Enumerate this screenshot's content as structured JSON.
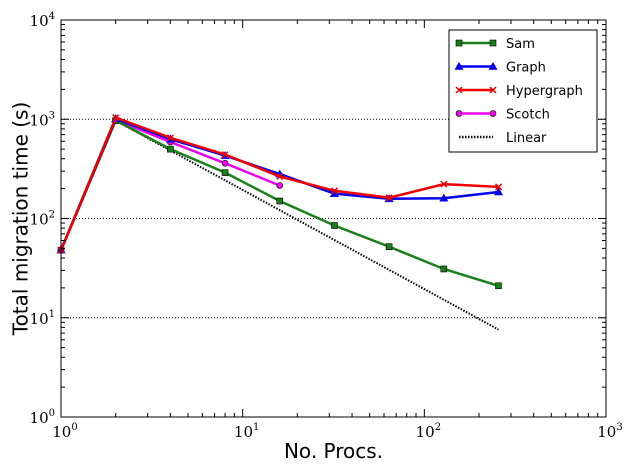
{
  "chart_data": {
    "type": "line",
    "title": "",
    "xlabel": "No. Procs.",
    "ylabel": "Total migration time (s)",
    "xscale": "log",
    "yscale": "log",
    "xlim": [
      1,
      1000
    ],
    "ylim": [
      1,
      10000
    ],
    "x_ticks": [
      {
        "base": "10",
        "exp": "0"
      },
      {
        "base": "10",
        "exp": "1"
      },
      {
        "base": "10",
        "exp": "2"
      },
      {
        "base": "10",
        "exp": "3"
      }
    ],
    "y_ticks": [
      {
        "base": "10",
        "exp": "0"
      },
      {
        "base": "10",
        "exp": "1"
      },
      {
        "base": "10",
        "exp": "2"
      },
      {
        "base": "10",
        "exp": "3"
      },
      {
        "base": "10",
        "exp": "4"
      }
    ],
    "grid": "horizontal dotted at major y ticks",
    "legend_position": "top-right",
    "series": [
      {
        "name": "Sam",
        "color": "#1a7f1a",
        "marker": "square",
        "x": [
          1,
          2,
          4,
          8,
          16,
          32,
          64,
          128,
          256
        ],
        "y": [
          48,
          970,
          500,
          290,
          150,
          85,
          52,
          31,
          21
        ]
      },
      {
        "name": "Graph",
        "color": "#0000ee",
        "marker": "triangle",
        "x": [
          1,
          2,
          4,
          8,
          16,
          32,
          64,
          128,
          256
        ],
        "y": [
          48,
          1010,
          630,
          430,
          280,
          178,
          158,
          160,
          185
        ]
      },
      {
        "name": "Hypergraph",
        "color": "#ee0000",
        "marker": "x",
        "x": [
          1,
          2,
          4,
          8,
          16,
          32,
          64,
          128,
          256
        ],
        "y": [
          48,
          1040,
          650,
          440,
          265,
          190,
          162,
          222,
          208
        ]
      },
      {
        "name": "Scotch",
        "color": "#ee00ee",
        "marker": "circle",
        "x": [
          1,
          2,
          4,
          8,
          16
        ],
        "y": [
          48,
          980,
          590,
          360,
          215
        ]
      },
      {
        "name": "Linear",
        "color": "#000000",
        "marker": "none",
        "dash": "dotted",
        "x": [
          2,
          256
        ],
        "y": [
          970,
          7.6
        ]
      }
    ]
  }
}
